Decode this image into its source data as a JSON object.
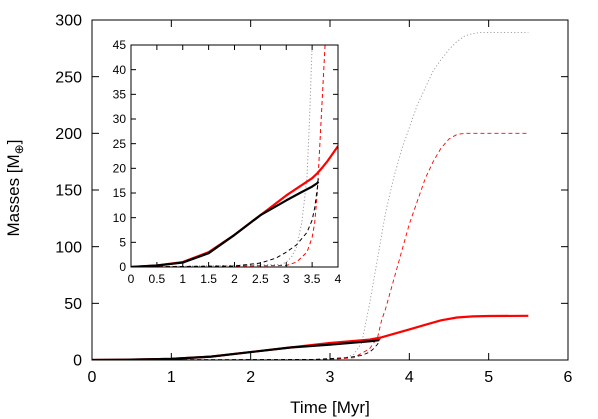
{
  "chart_data": [
    {
      "type": "line",
      "xlabel": "Time [Myr]",
      "ylabel_main": "Masses [M",
      "ylabel_sub": "⊕",
      "ylabel_close": "]",
      "xlim": [
        0,
        6
      ],
      "ylim": [
        0,
        300
      ],
      "xticks": [
        0,
        1,
        2,
        3,
        4,
        5,
        6
      ],
      "yticks": [
        0,
        50,
        100,
        150,
        200,
        250,
        300
      ],
      "series": [
        {
          "style": "dotted",
          "color": "#999999",
          "x": [
            0,
            3.0,
            3.2,
            3.3,
            3.4,
            3.5,
            3.6,
            3.7,
            3.8,
            3.9,
            4.0,
            4.1,
            4.2,
            4.3,
            4.4,
            4.5,
            4.6,
            4.7,
            4.8,
            4.9,
            5.0,
            5.5
          ],
          "y": [
            0,
            0.5,
            2,
            5,
            15,
            50,
            90,
            130,
            160,
            185,
            205,
            225,
            240,
            255,
            265,
            274,
            281,
            286,
            288,
            289,
            289,
            289
          ]
        },
        {
          "style": "dashed",
          "color": "#ff0000",
          "x": [
            0,
            3.0,
            3.3,
            3.5,
            3.6,
            3.65,
            3.7,
            3.8,
            3.9,
            4.0,
            4.1,
            4.2,
            4.3,
            4.4,
            4.5,
            4.6,
            4.7,
            4.8,
            5.0,
            5.5
          ],
          "y": [
            0,
            0.5,
            2,
            10,
            20,
            35,
            45,
            70,
            95,
            120,
            140,
            160,
            175,
            187,
            195,
            199,
            200,
            200,
            200,
            200
          ]
        },
        {
          "style": "dashed",
          "color": "#000000",
          "x": [
            0,
            2.8,
            3.2,
            3.4,
            3.5,
            3.55,
            3.6,
            3.62,
            3.64
          ],
          "y": [
            0,
            0.5,
            2,
            4,
            7,
            10,
            14,
            17,
            20
          ]
        },
        {
          "style": "solid",
          "color": "#ff0000",
          "x": [
            0,
            0.5,
            1.0,
            1.5,
            2.0,
            2.5,
            3.0,
            3.5,
            3.65,
            3.8,
            4.0,
            4.2,
            4.4,
            4.6,
            4.8,
            5.0,
            5.5
          ],
          "y": [
            0,
            0.3,
            1,
            3,
            7,
            11,
            15,
            18,
            20,
            23,
            27,
            31,
            35,
            37.5,
            38.5,
            38.8,
            39
          ]
        },
        {
          "style": "solid",
          "color": "#000000",
          "x": [
            0,
            0.5,
            1.0,
            1.5,
            2.0,
            2.5,
            3.0,
            3.5,
            3.62
          ],
          "y": [
            0,
            0.3,
            1,
            3,
            7,
            11,
            13.5,
            16.5,
            17.5
          ]
        }
      ]
    },
    {
      "type": "line",
      "xlim": [
        0,
        4
      ],
      "ylim": [
        0,
        45
      ],
      "xticks": [
        0,
        0.5,
        1,
        1.5,
        2,
        2.5,
        3,
        3.5,
        4
      ],
      "xtick_labels": [
        "0",
        "0.5",
        "1",
        "1.5",
        "2",
        "2.5",
        "3",
        "3.5",
        "4"
      ],
      "yticks": [
        0,
        5,
        10,
        15,
        20,
        25,
        30,
        35,
        40,
        45
      ],
      "series": [
        {
          "style": "dotted",
          "color": "#999999",
          "x": [
            0,
            2.9,
            3.0,
            3.1,
            3.2,
            3.3,
            3.4,
            3.45,
            3.5
          ],
          "y": [
            0,
            0.5,
            1,
            2,
            4,
            9,
            18,
            30,
            45
          ]
        },
        {
          "style": "dashed",
          "color": "#ff0000",
          "x": [
            0,
            3.0,
            3.2,
            3.4,
            3.5,
            3.55,
            3.6,
            3.65,
            3.7,
            3.75
          ],
          "y": [
            0,
            0.3,
            1,
            3,
            6,
            9,
            15,
            25,
            35,
            45
          ]
        },
        {
          "style": "dashed",
          "color": "#000000",
          "x": [
            0,
            2.0,
            2.5,
            2.8,
            3.0,
            3.2,
            3.4,
            3.5,
            3.55,
            3.6,
            3.62
          ],
          "y": [
            0,
            0.2,
            0.8,
            1.8,
            3,
            4.5,
            7,
            9.5,
            12,
            16,
            18
          ]
        },
        {
          "style": "solid",
          "color": "#ff0000",
          "x": [
            0,
            0.5,
            1.0,
            1.5,
            2.0,
            2.5,
            3.0,
            3.5,
            3.6,
            3.7,
            3.8,
            3.9,
            4.0
          ],
          "y": [
            0,
            0.3,
            1.0,
            3.0,
            6.5,
            10.5,
            14.5,
            18.0,
            19.0,
            20.2,
            21.5,
            23.0,
            24.5
          ]
        },
        {
          "style": "solid",
          "color": "#000000",
          "x": [
            0,
            0.5,
            1.0,
            1.5,
            2.0,
            2.5,
            3.0,
            3.3,
            3.5,
            3.6,
            3.62
          ],
          "y": [
            0,
            0.3,
            0.9,
            2.8,
            6.5,
            10.5,
            13.5,
            15.2,
            16.3,
            17.0,
            17.3
          ]
        }
      ]
    }
  ]
}
